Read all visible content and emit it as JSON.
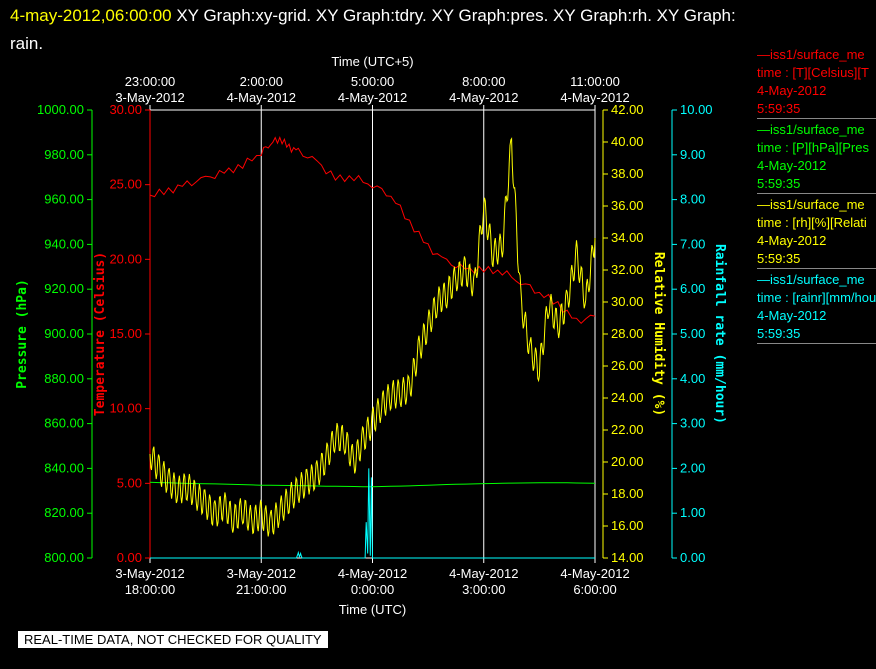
{
  "header": {
    "datetime": "4-may-2012,06:00:00",
    "titles": "XY Graph:xy-grid.  XY Graph:tdry.  XY Graph:pres.  XY Graph:rh.  XY Graph:",
    "titles_cont": "rain."
  },
  "footer": "REAL-TIME DATA, NOT CHECKED FOR QUALITY",
  "legend": [
    {
      "name": "—iss1/surface_me",
      "units": "time : [T][Celsius][T",
      "date": "4-May-2012",
      "time": "5:59:35",
      "color": "#ff0000"
    },
    {
      "name": "—iss1/surface_me",
      "units": "time : [P][hPa][Pres",
      "date": "4-May-2012",
      "time": "5:59:35",
      "color": "#00ff00"
    },
    {
      "name": "—iss1/surface_me",
      "units": "time : [rh][%][Relati",
      "date": "4-May-2012",
      "time": "5:59:35",
      "color": "#ffff00"
    },
    {
      "name": "—iss1/surface_me",
      "units": "time : [rainr][mm/hou",
      "date": "4-May-2012",
      "time": "5:59:35",
      "color": "#00ffff"
    }
  ],
  "chart_data": {
    "type": "line",
    "xlabel": "Time (UTC)",
    "x2label": "Time (UTC+5)",
    "x_ticks": [
      {
        "date": "3-May-2012",
        "time": "18:00:00"
      },
      {
        "date": "3-May-2012",
        "time": "21:00:00"
      },
      {
        "date": "4-May-2012",
        "time": "0:00:00"
      },
      {
        "date": "4-May-2012",
        "time": "3:00:00"
      },
      {
        "date": "4-May-2012",
        "time": "6:00:00"
      }
    ],
    "x2_ticks": [
      {
        "date": "3-May-2012",
        "time": "23:00:00"
      },
      {
        "date": "4-May-2012",
        "time": "2:00:00"
      },
      {
        "date": "4-May-2012",
        "time": "5:00:00"
      },
      {
        "date": "4-May-2012",
        "time": "8:00:00"
      },
      {
        "date": "4-May-2012",
        "time": "11:00:00"
      }
    ],
    "xrange_hours": [
      0,
      12
    ],
    "grid": true,
    "axes": {
      "pressure": {
        "label": "Pressure (hPa)",
        "range": [
          800,
          1000
        ],
        "ticks": [
          "800.00",
          "820.00",
          "840.00",
          "860.00",
          "880.00",
          "900.00",
          "920.00",
          "940.00",
          "960.00",
          "980.00",
          "1000.00"
        ],
        "color": "#00ff00"
      },
      "temperature": {
        "label": "Temperature (Celsius)",
        "range": [
          0,
          30
        ],
        "ticks": [
          "0.00",
          "5.00",
          "10.00",
          "15.00",
          "20.00",
          "25.00",
          "30.00"
        ],
        "color": "#ff0000"
      },
      "rh": {
        "label": "Relative Humidity (%)",
        "range": [
          14,
          42
        ],
        "ticks": [
          "14.00",
          "16.00",
          "18.00",
          "20.00",
          "22.00",
          "24.00",
          "26.00",
          "28.00",
          "30.00",
          "32.00",
          "34.00",
          "36.00",
          "38.00",
          "40.00",
          "42.00"
        ],
        "color": "#ffff00"
      },
      "rain": {
        "label": "Rainfall rate (mm/hour)",
        "range": [
          0,
          10
        ],
        "ticks": [
          "0.00",
          "1.00",
          "2.00",
          "3.00",
          "4.00",
          "5.00",
          "6.00",
          "7.00",
          "8.00",
          "9.00",
          "10.00"
        ],
        "color": "#00ffff"
      }
    },
    "series": [
      {
        "axis": "temperature",
        "color": "#ff0000",
        "x": [
          0,
          0.5,
          1,
          1.5,
          2,
          2.5,
          3,
          3.25,
          3.5,
          3.75,
          4,
          4.5,
          5,
          5.5,
          6,
          6.5,
          7,
          7.5,
          8,
          8.5,
          9,
          9.5,
          10,
          10.5,
          11,
          11.5,
          12
        ],
        "y": [
          24.3,
          24.6,
          25,
          25.4,
          25.8,
          26.3,
          27.2,
          27.8,
          28.1,
          27.5,
          27.2,
          26.5,
          25.4,
          25.5,
          25,
          24.3,
          22.5,
          20.8,
          19.8,
          19.3,
          19.3,
          19.2,
          18.5,
          17.8,
          17,
          15.8,
          16.2
        ]
      },
      {
        "axis": "pressure",
        "color": "#00ff00",
        "x": [
          0,
          1,
          2,
          3,
          4,
          5,
          6,
          7,
          8,
          9,
          10,
          11,
          12
        ],
        "y": [
          833.8,
          833.3,
          833,
          832.5,
          832.3,
          832,
          831.8,
          832.2,
          832.8,
          833.2,
          833.5,
          833.6,
          833.4
        ]
      },
      {
        "axis": "rh",
        "color": "#ffff00",
        "x": [
          0,
          0.25,
          0.5,
          0.75,
          1,
          1.25,
          1.5,
          1.75,
          2,
          2.25,
          2.5,
          2.75,
          3,
          3.25,
          3.5,
          3.75,
          4,
          4.25,
          4.5,
          4.75,
          5,
          5.25,
          5.5,
          5.75,
          6,
          6.25,
          6.5,
          6.75,
          7,
          7.25,
          7.5,
          7.75,
          8,
          8.25,
          8.5,
          8.75,
          9,
          9.25,
          9.5,
          9.75,
          10,
          10.25,
          10.5,
          10.75,
          11,
          11.25,
          11.5,
          11.75,
          12
        ],
        "y": [
          20.5,
          19.5,
          18.8,
          18.2,
          18.5,
          17.9,
          17.4,
          16.7,
          17.3,
          16.4,
          17,
          16.3,
          16.7,
          16.1,
          16.9,
          17.7,
          18.3,
          18.8,
          19.2,
          20.2,
          21.6,
          21.4,
          20,
          21.4,
          22.5,
          23.5,
          24.2,
          24.3,
          24.6,
          27,
          28.5,
          30,
          30.5,
          31.5,
          32,
          31,
          36,
          33,
          33.5,
          40,
          30,
          27,
          25.8,
          30,
          28.5,
          30,
          33,
          30,
          34
        ]
      },
      {
        "axis": "rain",
        "color": "#00ffff",
        "x": [
          0,
          3.95,
          4,
          4.03,
          4.06,
          4.1,
          5.8,
          5.83,
          5.87,
          5.9,
          5.94,
          5.97,
          6,
          12
        ],
        "y": [
          0,
          0,
          0.12,
          0.02,
          0.1,
          0,
          0,
          0.8,
          0.1,
          2,
          0.05,
          1.8,
          0,
          0
        ]
      }
    ]
  }
}
